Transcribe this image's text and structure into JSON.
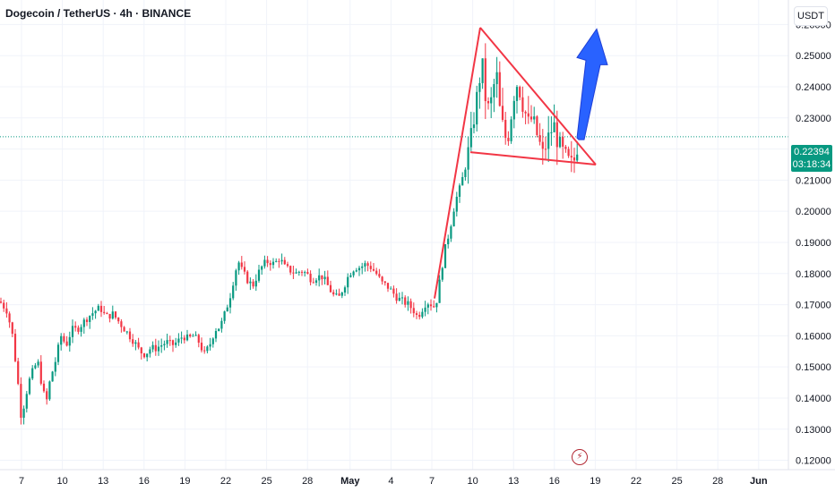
{
  "header": {
    "symbol_title": "Dogecoin / TetherUS · 4h · BINANCE",
    "currency": "USDT"
  },
  "price_label": {
    "price": "0.22394",
    "countdown": "03:18:34"
  },
  "colors": {
    "up": "#089981",
    "down": "#f23645",
    "pattern_line": "#f23645",
    "arrow": "#2962ff",
    "grid": "#f0f3fa",
    "price_line": "#089981"
  },
  "chart_data": {
    "type": "candlestick",
    "y_ticks": [
      "0.26000",
      "0.25000",
      "0.24000",
      "0.23000",
      "0.22000",
      "0.21000",
      "0.20000",
      "0.19000",
      "0.18000",
      "0.17000",
      "0.16000",
      "0.15000",
      "0.14000",
      "0.13000",
      "0.12000"
    ],
    "x_ticks": [
      "7",
      "10",
      "13",
      "16",
      "19",
      "22",
      "25",
      "28",
      "May",
      "4",
      "7",
      "10",
      "13",
      "16",
      "19",
      "22",
      "25",
      "28",
      "Jun"
    ],
    "ylim": [
      0.117,
      0.265
    ],
    "last_price": 0.22394,
    "close_path": [
      [
        0,
        0.171
      ],
      [
        8,
        0.168
      ],
      [
        14,
        0.16
      ],
      [
        20,
        0.145
      ],
      [
        24,
        0.133
      ],
      [
        28,
        0.14
      ],
      [
        34,
        0.147
      ],
      [
        42,
        0.152
      ],
      [
        48,
        0.142
      ],
      [
        52,
        0.139
      ],
      [
        56,
        0.146
      ],
      [
        62,
        0.152
      ],
      [
        68,
        0.16
      ],
      [
        74,
        0.157
      ],
      [
        80,
        0.162
      ],
      [
        86,
        0.162
      ],
      [
        92,
        0.164
      ],
      [
        98,
        0.166
      ],
      [
        106,
        0.168
      ],
      [
        112,
        0.169
      ],
      [
        118,
        0.166
      ],
      [
        126,
        0.167
      ],
      [
        134,
        0.164
      ],
      [
        142,
        0.161
      ],
      [
        150,
        0.158
      ],
      [
        156,
        0.155
      ],
      [
        162,
        0.154
      ],
      [
        168,
        0.156
      ],
      [
        174,
        0.156
      ],
      [
        180,
        0.157
      ],
      [
        186,
        0.158
      ],
      [
        192,
        0.157
      ],
      [
        198,
        0.158
      ],
      [
        204,
        0.16
      ],
      [
        210,
        0.159
      ],
      [
        216,
        0.16
      ],
      [
        222,
        0.158
      ],
      [
        228,
        0.154
      ],
      [
        234,
        0.157
      ],
      [
        240,
        0.162
      ],
      [
        246,
        0.163
      ],
      [
        252,
        0.168
      ],
      [
        258,
        0.174
      ],
      [
        262,
        0.18
      ],
      [
        266,
        0.184
      ],
      [
        270,
        0.181
      ],
      [
        276,
        0.178
      ],
      [
        282,
        0.176
      ],
      [
        288,
        0.18
      ],
      [
        294,
        0.183
      ],
      [
        300,
        0.184
      ],
      [
        306,
        0.183
      ],
      [
        312,
        0.185
      ],
      [
        318,
        0.182
      ],
      [
        324,
        0.181
      ],
      [
        330,
        0.18
      ],
      [
        336,
        0.181
      ],
      [
        342,
        0.18
      ],
      [
        348,
        0.178
      ],
      [
        354,
        0.179
      ],
      [
        360,
        0.179
      ],
      [
        366,
        0.176
      ],
      [
        372,
        0.173
      ],
      [
        378,
        0.172
      ],
      [
        384,
        0.176
      ],
      [
        390,
        0.18
      ],
      [
        396,
        0.182
      ],
      [
        402,
        0.182
      ],
      [
        408,
        0.183
      ],
      [
        414,
        0.182
      ],
      [
        420,
        0.18
      ],
      [
        426,
        0.177
      ],
      [
        432,
        0.176
      ],
      [
        438,
        0.174
      ],
      [
        444,
        0.172
      ],
      [
        450,
        0.171
      ],
      [
        456,
        0.17
      ],
      [
        462,
        0.168
      ],
      [
        466,
        0.166
      ],
      [
        470,
        0.168
      ],
      [
        476,
        0.171
      ],
      [
        482,
        0.17
      ],
      [
        486,
        0.169
      ],
      [
        490,
        0.176
      ],
      [
        496,
        0.187
      ],
      [
        502,
        0.194
      ],
      [
        508,
        0.203
      ],
      [
        514,
        0.208
      ],
      [
        520,
        0.215
      ],
      [
        526,
        0.224
      ],
      [
        530,
        0.232
      ],
      [
        534,
        0.24
      ],
      [
        538,
        0.248
      ],
      [
        542,
        0.236
      ],
      [
        546,
        0.232
      ],
      [
        550,
        0.238
      ],
      [
        554,
        0.245
      ],
      [
        558,
        0.232
      ],
      [
        562,
        0.226
      ],
      [
        566,
        0.222
      ],
      [
        570,
        0.23
      ],
      [
        574,
        0.238
      ],
      [
        578,
        0.242
      ],
      [
        582,
        0.236
      ],
      [
        586,
        0.232
      ],
      [
        590,
        0.228
      ],
      [
        594,
        0.23
      ],
      [
        598,
        0.226
      ],
      [
        602,
        0.222
      ],
      [
        606,
        0.218
      ],
      [
        610,
        0.222
      ],
      [
        614,
        0.225
      ],
      [
        618,
        0.228
      ],
      [
        622,
        0.223
      ],
      [
        626,
        0.22
      ],
      [
        630,
        0.218
      ],
      [
        634,
        0.216
      ],
      [
        638,
        0.215
      ],
      [
        642,
        0.217
      ],
      [
        646,
        0.224
      ]
    ],
    "pattern": {
      "pole": [
        [
          485,
          0.172
        ],
        [
          536,
          0.259
        ]
      ],
      "upper": [
        [
          536,
          0.259
        ],
        [
          665,
          0.215
        ]
      ],
      "lower": [
        [
          525,
          0.219
        ],
        [
          665,
          0.215
        ]
      ]
    },
    "arrow": {
      "from": [
        646,
        0.223
      ],
      "to": [
        666,
        0.258
      ]
    }
  }
}
